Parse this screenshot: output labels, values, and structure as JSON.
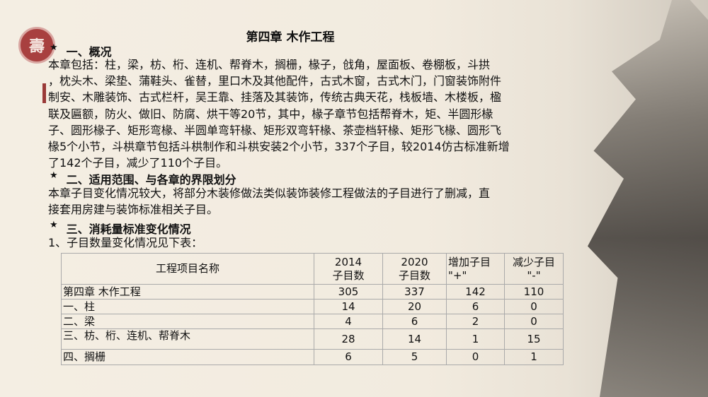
{
  "logo": {
    "glyph": "壽"
  },
  "title": "第四章  木作工程",
  "sections": [
    {
      "star": "★",
      "heading": "一、概况",
      "lines": [
        " 本章包括：柱，梁，枋、桁、连机、帮脊木，搁栅，椽子，戗角，屋面板、卷棚板，斗拱",
        "，枕头木、梁垫、蒲鞋头、雀替，里口木及其他配件，古式木窗，古式木门，门窗装饰附件",
        "制安、木雕装饰、古式栏杆，吴王靠、挂落及其装饰，传统古典天花，栈板墙、木楼板，楹",
        "联及匾额，防火、做旧、防腐、烘干等20节，其中，椽子章节包括帮脊木，矩、半圆形椽",
        "子、圆形椽子、矩形弯椽、半圆单弯轩椽、矩形双弯轩椽、茶壶档轩椽、矩形飞椽、圆形飞",
        "椽5个小节，斗栱章节包括斗栱制作和斗栱安装2个小节，337个子目，较2014仿古标准新增",
        "了142个子目，减少了110个子目。"
      ]
    },
    {
      "star": "★",
      "heading": "二、适用范围、与各章的界限划分",
      "lines": [
        " 本章子目变化情况较大，将部分木装修做法类似装饰装修工程做法的子目进行了删减，直",
        "接套用房建与装饰标准相关子目。"
      ]
    },
    {
      "star": "★",
      "heading": "三、消耗量标准变化情况",
      "lines": [
        "1、子目数量变化情况见下表："
      ]
    }
  ],
  "table": {
    "headers": [
      [
        "工程项目名称"
      ],
      [
        "2014",
        "子目数"
      ],
      [
        "2020",
        "子目数"
      ],
      [
        "增加子目",
        "\"+\""
      ],
      [
        "减少子目",
        "\"-\""
      ]
    ],
    "rows": [
      [
        "第四章 木作工程",
        "305",
        "337",
        "142",
        "110"
      ],
      [
        "一、柱",
        "14",
        "20",
        "6",
        "0"
      ],
      [
        "二、梁",
        "4",
        "6",
        "2",
        "0"
      ],
      [
        "三、枋、桁、连机、帮脊木",
        "28",
        "14",
        "1",
        "15"
      ],
      [
        "四、搁栅",
        "6",
        "5",
        "0",
        "1"
      ]
    ]
  }
}
